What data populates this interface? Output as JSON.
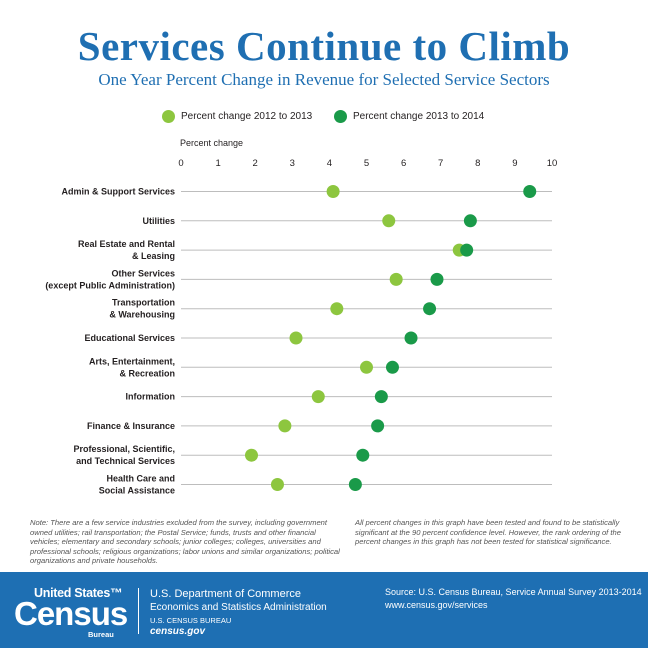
{
  "chart_data": {
    "type": "scatter",
    "title": "Services Continue to Climb",
    "subtitle": "One Year Percent Change in Revenue for Selected Service Sectors",
    "xlabel": "Percent change",
    "xlim": [
      0,
      10
    ],
    "xticks": [
      "0",
      "1",
      "2",
      "3",
      "4",
      "5",
      "6",
      "7",
      "8",
      "9",
      "10"
    ],
    "grid": "horizontal",
    "legend": "top",
    "categories": [
      [
        "Admin & Support Services"
      ],
      [
        "Utilities"
      ],
      [
        "Real Estate and Rental",
        "& Leasing"
      ],
      [
        "Other Services",
        "(except Public Administration)"
      ],
      [
        "Transportation",
        "& Warehousing"
      ],
      [
        "Educational Services"
      ],
      [
        "Arts, Entertainment,",
        "& Recreation"
      ],
      [
        "Information"
      ],
      [
        "Finance & Insurance"
      ],
      [
        "Professional, Scientific,",
        "and Technical Services"
      ],
      [
        "Health Care and",
        "Social Assistance"
      ]
    ],
    "series": [
      {
        "name": "Percent change 2012 to 2013",
        "color": "#8dc63f",
        "values": [
          4.1,
          5.6,
          7.5,
          5.8,
          4.2,
          3.1,
          5.0,
          3.7,
          2.8,
          1.9,
          2.6
        ]
      },
      {
        "name": "Percent change 2013 to 2014",
        "color": "#1a9a49",
        "values": [
          9.4,
          7.8,
          7.7,
          6.9,
          6.7,
          6.2,
          5.7,
          5.4,
          5.3,
          4.9,
          4.7
        ]
      }
    ]
  },
  "notes": {
    "left": "Note: There are a few service industries excluded from the survey, including government owned utilities; rail transportation; the Postal Service; funds, trusts and other financial vehicles; elementary and secondary schools; junior colleges; colleges, universities and professional schools; religious organizations; labor unions and similar organizations; political organizations and private households.",
    "right": "All percent changes in this graph have been tested and found to be statistically significant at the 90 percent confidence level. However, the rank ordering of the percent changes in this graph has not been tested for statistical significance."
  },
  "footer": {
    "logo_top": "United States™",
    "logo_main": "Census",
    "logo_bureau": "Bureau",
    "dept_line1": "U.S. Department of Commerce",
    "dept_line2": "Economics and Statistics Administration",
    "dept_line3": "U.S. CENSUS BUREAU",
    "dept_line4": "census.gov",
    "source": "Source: U.S. Census Bureau, Service Annual Survey 2013-2014",
    "url": "www.census.gov/services"
  },
  "colors": {
    "title": "#1f6fb2",
    "footer_bg": "#1e6fb3",
    "series_2013": "#8dc63f",
    "series_2014": "#1a9a49",
    "gridline": "#bdbdbd"
  }
}
